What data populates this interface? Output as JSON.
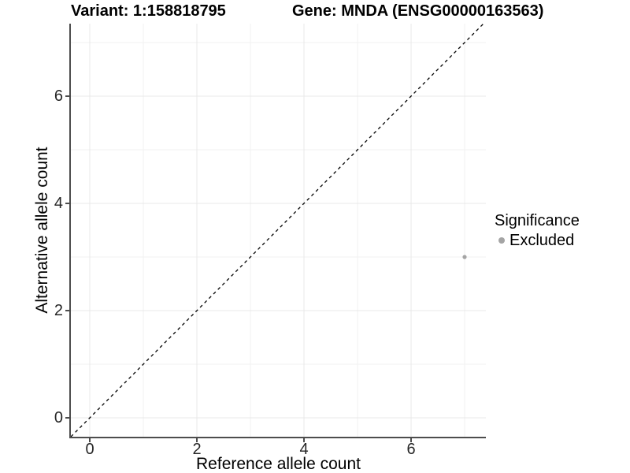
{
  "chart_data": {
    "type": "scatter",
    "panel_titles": [
      "Variant: 1:158818795",
      "Gene: MNDA (ENSG00000163563)"
    ],
    "xlabel": "Reference allele count",
    "ylabel": "Alternative allele count",
    "xlim": [
      -0.353,
      7.4
    ],
    "ylim": [
      -0.353,
      7.35
    ],
    "x_ticks": [
      0,
      2,
      4,
      6
    ],
    "y_ticks": [
      0,
      2,
      4,
      6
    ],
    "x_minor_gridlines": [
      1,
      3,
      5,
      7
    ],
    "y_minor_gridlines": [
      1,
      3,
      5,
      7
    ],
    "grid": "on",
    "legend": {
      "title": "Significance",
      "position": "right",
      "entries": [
        {
          "label": "Excluded",
          "color": "#a4a4a4"
        }
      ]
    },
    "series": [
      {
        "name": "Excluded",
        "color": "#a4a4a4",
        "point_radius": 2.6,
        "points": [
          {
            "x": 7,
            "y": 3
          }
        ]
      }
    ],
    "reference_line": {
      "type": "identity y=x",
      "style": "dashed",
      "color": "#000000"
    },
    "colors": {
      "major_grid": "#e8e8e8",
      "minor_grid": "#f2f2f2",
      "axis_line": "#4d4d4d",
      "tick_label": "#262626",
      "background": "#ffffff"
    }
  }
}
